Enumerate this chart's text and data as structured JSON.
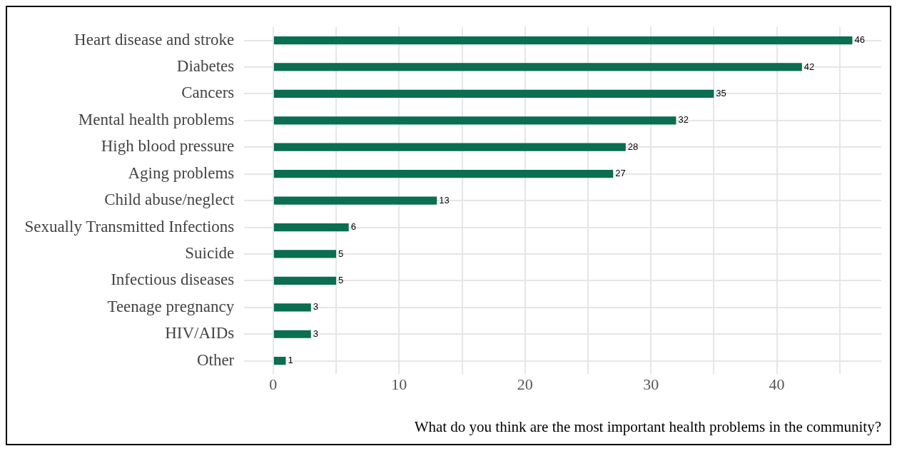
{
  "chart_data": {
    "type": "bar",
    "orientation": "horizontal",
    "xlabel": "What do you think are the most important health problems in the community?",
    "categories": [
      "Heart disease and stroke",
      "Diabetes",
      "Cancers",
      "Mental health problems",
      "High blood pressure",
      "Aging problems",
      "Child abuse/neglect",
      "Sexually Transmitted Infections",
      "Suicide",
      "Infectious diseases",
      "Teenage pregnancy",
      "HIV/AIDs",
      "Other"
    ],
    "values": [
      46,
      42,
      35,
      32,
      28,
      27,
      13,
      6,
      5,
      5,
      3,
      3,
      1
    ],
    "color": "#0a6e50",
    "data_labels": true,
    "grid": true,
    "legend": false,
    "xlim": [
      -2.3,
      48.3
    ],
    "xticks": [
      0,
      {
        "value": 5,
        "label": null
      },
      10,
      {
        "value": 15,
        "label": null
      },
      20,
      {
        "value": 25,
        "label": null
      },
      30,
      {
        "value": 35,
        "label": null
      },
      40,
      {
        "value": 45,
        "label": null
      }
    ]
  }
}
